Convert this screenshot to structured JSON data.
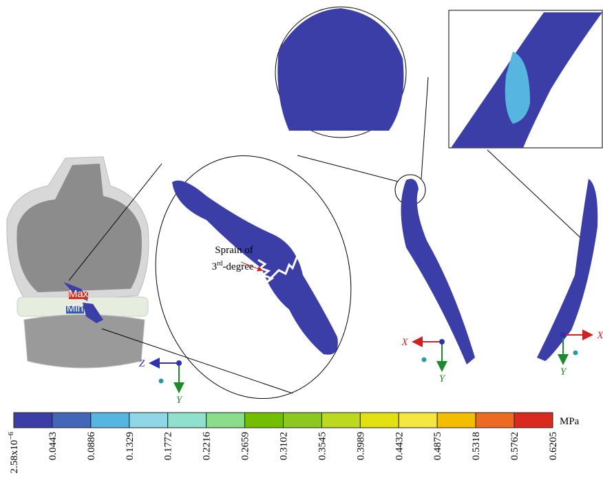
{
  "annotation": {
    "line1": "Sprain of",
    "line2_base": "3",
    "line2_sup": "rd",
    "line2_rest": "-degree"
  },
  "markers": {
    "max": "Max",
    "min": "Min"
  },
  "triads": [
    {
      "h": "Z",
      "v": "Y"
    },
    {
      "h": "X",
      "v": "Y"
    },
    {
      "h": "X",
      "v": "Y"
    }
  ],
  "colorbar": {
    "unit": "MPa",
    "colors": [
      "#3a3ea6",
      "#4466b8",
      "#56b6e0",
      "#8fd6e6",
      "#8fe0cc",
      "#88dc8a",
      "#74be00",
      "#8cc820",
      "#bcd820",
      "#e2e010",
      "#f4e640",
      "#f4be00",
      "#ec6a22",
      "#da2a20"
    ],
    "first_label": {
      "base": "2.58x10",
      "exponent": "−6"
    },
    "labels": [
      "0.0443",
      "0.0886",
      "0.1329",
      "0.1772",
      "0.2216",
      "0.2659",
      "0.3102",
      "0.3545",
      "0.3989",
      "0.4432",
      "0.4875",
      "0.5318",
      "0.5762",
      "0.6205"
    ]
  }
}
